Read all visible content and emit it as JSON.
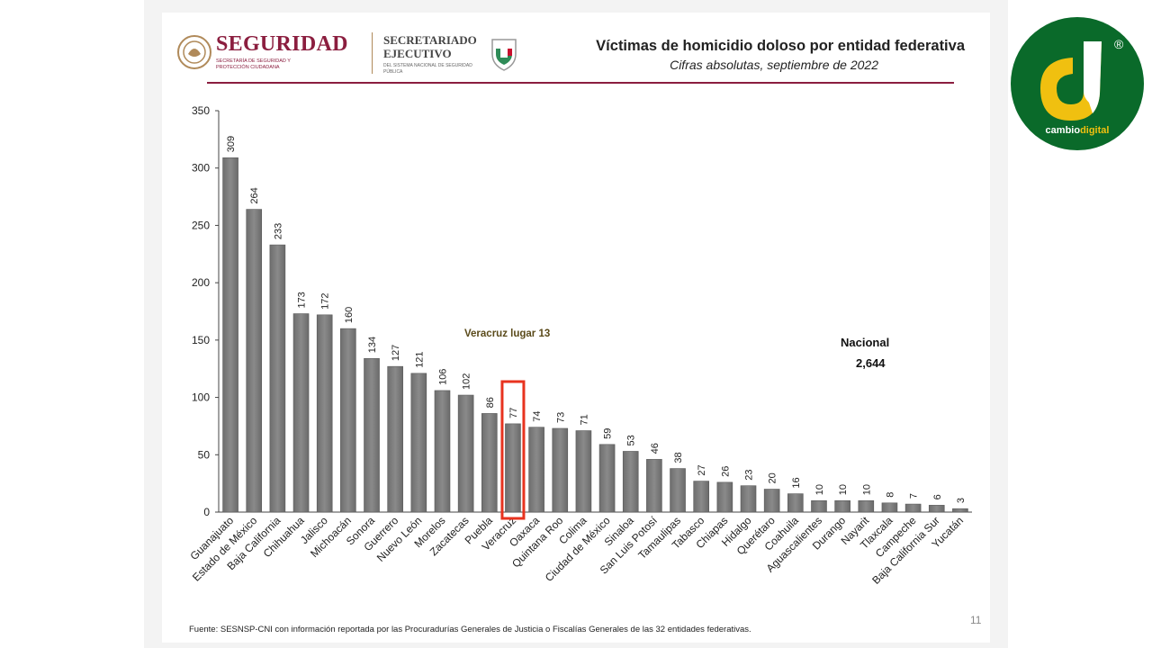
{
  "header": {
    "seguridad": "SEGURIDAD",
    "seguridad_sub": "SECRETARÍA DE SEGURIDAD Y PROTECCIÓN CIUDADANA",
    "se_line1": "SECRETARIADO",
    "se_line2": "EJECUTIVO",
    "se_sub": "DEL SISTEMA NACIONAL DE SEGURIDAD PÚBLICA"
  },
  "footer": {
    "source": "Fuente: SESNSP-CNI con información reportada por las Procuradurías Generales de Justicia o Fiscalías Generales de las 32 entidades federativas.",
    "page_number": "11"
  },
  "brand": {
    "name_a": "cambio",
    "name_b": "digital",
    "registered": "®"
  },
  "colors": {
    "bar": "#8a8a8a",
    "highlight": "#e8331f",
    "accent": "#8b1e3f",
    "annotation": "#5a4a1a",
    "brand_green": "#0a6a2a",
    "brand_yellow": "#f0c010"
  },
  "chart_data": {
    "type": "bar",
    "title": "Víctimas de homicidio doloso por entidad federativa",
    "subtitle": "Cifras absolutas, septiembre de 2022",
    "xlabel": "",
    "ylabel": "",
    "ylim": [
      0,
      350
    ],
    "yticks": [
      0,
      50,
      100,
      150,
      200,
      250,
      300,
      350
    ],
    "grid": false,
    "categories": [
      "Guanajuato",
      "Estado de México",
      "Baja California",
      "Chihuahua",
      "Jalisco",
      "Michoacán",
      "Sonora",
      "Guerrero",
      "Nuevo León",
      "Morelos",
      "Zacatecas",
      "Puebla",
      "Veracruz",
      "Oaxaca",
      "Quintana Roo",
      "Colima",
      "Ciudad de México",
      "Sinaloa",
      "San Luis Potosí",
      "Tamaulipas",
      "Tabasco",
      "Chiapas",
      "Hidalgo",
      "Querétaro",
      "Coahuila",
      "Aguascalientes",
      "Durango",
      "Nayarit",
      "Tlaxcala",
      "Campeche",
      "Baja California Sur",
      "Yucatán"
    ],
    "values": [
      309,
      264,
      233,
      173,
      172,
      160,
      134,
      127,
      121,
      106,
      102,
      86,
      77,
      74,
      73,
      71,
      59,
      53,
      46,
      38,
      27,
      26,
      23,
      20,
      16,
      10,
      10,
      10,
      8,
      7,
      6,
      3
    ],
    "highlight_index": 12,
    "annotations": {
      "highlight_label": "Veracruz lugar  13",
      "total_label": "Nacional",
      "total_value": "2,644"
    }
  }
}
